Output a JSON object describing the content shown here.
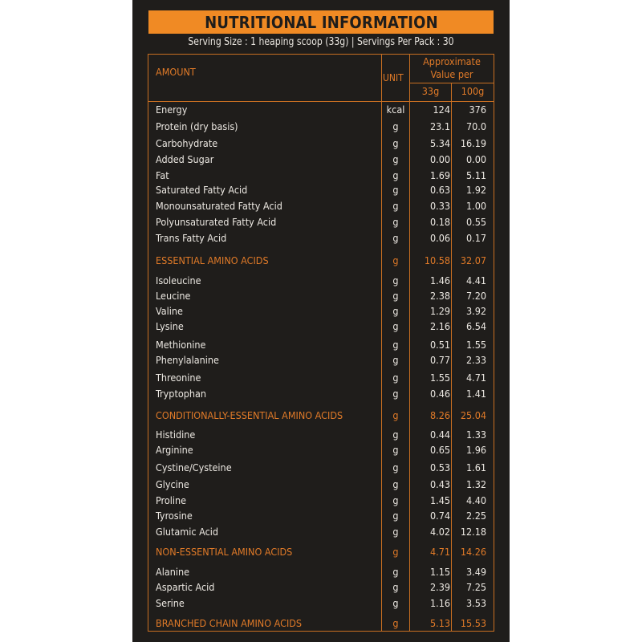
{
  "title": "NUTRITIONAL INFORMATION",
  "subtitle": "Serving Size : 1 heaping scoop (33g) | Servings Per Pack : 30",
  "colors": {
    "accent": "#f08a24",
    "background": "#1f1d1b",
    "text": "#ece8e2"
  },
  "header": {
    "amount": "AMOUNT",
    "unit": "UNIT",
    "approx_line1": "Approximate",
    "approx_line2": "Value per",
    "col_33g": "33g",
    "col_100g": "100g"
  },
  "rows": [
    {
      "name": "Energy",
      "unit": "kcal",
      "per_33g": "124",
      "per_100g": "376"
    },
    {
      "name": "Protein (dry basis)",
      "unit": "g",
      "per_33g": "23.1",
      "per_100g": "70.0"
    },
    {
      "name": "Carbohydrate",
      "unit": "g",
      "per_33g": "5.34",
      "per_100g": "16.19"
    },
    {
      "name": "Added Sugar",
      "unit": "g",
      "per_33g": "0.00",
      "per_100g": "0.00"
    },
    {
      "name": "Fat",
      "unit": "g",
      "per_33g": "1.69",
      "per_100g": "5.11"
    },
    {
      "name": "Saturated Fatty Acid",
      "unit": "g",
      "per_33g": "0.63",
      "per_100g": "1.92"
    },
    {
      "name": "Monounsaturated Fatty Acid",
      "unit": "g",
      "per_33g": "0.33",
      "per_100g": "1.00"
    },
    {
      "name": "Polyunsaturated Fatty Acid",
      "unit": "g",
      "per_33g": "0.18",
      "per_100g": "0.55"
    },
    {
      "name": "Trans Fatty Acid",
      "unit": "g",
      "per_33g": "0.06",
      "per_100g": "0.17"
    },
    {
      "name": "ESSENTIAL AMINO ACIDS",
      "unit": "g",
      "per_33g": "10.58",
      "per_100g": "32.07",
      "section": true
    },
    {
      "name": "Isoleucine",
      "unit": "g",
      "per_33g": "1.46",
      "per_100g": "4.41"
    },
    {
      "name": "Leucine",
      "unit": "g",
      "per_33g": "2.38",
      "per_100g": "7.20"
    },
    {
      "name": "Valine",
      "unit": "g",
      "per_33g": "1.29",
      "per_100g": "3.92"
    },
    {
      "name": "Lysine",
      "unit": "g",
      "per_33g": "2.16",
      "per_100g": "6.54"
    },
    {
      "name": "Methionine",
      "unit": "g",
      "per_33g": "0.51",
      "per_100g": "1.55"
    },
    {
      "name": "Phenylalanine",
      "unit": "g",
      "per_33g": "0.77",
      "per_100g": "2.33"
    },
    {
      "name": "Threonine",
      "unit": "g",
      "per_33g": "1.55",
      "per_100g": "4.71"
    },
    {
      "name": "Tryptophan",
      "unit": "g",
      "per_33g": "0.46",
      "per_100g": "1.41"
    },
    {
      "name": "CONDITIONALLY-ESSENTIAL AMINO ACIDS",
      "unit": "g",
      "per_33g": "8.26",
      "per_100g": "25.04",
      "section": true
    },
    {
      "name": "Histidine",
      "unit": "g",
      "per_33g": "0.44",
      "per_100g": "1.33"
    },
    {
      "name": "Arginine",
      "unit": "g",
      "per_33g": "0.65",
      "per_100g": "1.96"
    },
    {
      "name": "Cystine/Cysteine",
      "unit": "g",
      "per_33g": "0.53",
      "per_100g": "1.61"
    },
    {
      "name": "Glycine",
      "unit": "g",
      "per_33g": "0.43",
      "per_100g": "1.32"
    },
    {
      "name": "Proline",
      "unit": "g",
      "per_33g": "1.45",
      "per_100g": "4.40"
    },
    {
      "name": "Tyrosine",
      "unit": "g",
      "per_33g": "0.74",
      "per_100g": "2.25"
    },
    {
      "name": "Glutamic Acid",
      "unit": "g",
      "per_33g": "4.02",
      "per_100g": "12.18"
    },
    {
      "name": "NON-ESSENTIAL AMINO ACIDS",
      "unit": "g",
      "per_33g": "4.71",
      "per_100g": "14.26",
      "section": true
    },
    {
      "name": "Alanine",
      "unit": "g",
      "per_33g": "1.15",
      "per_100g": "3.49"
    },
    {
      "name": "Aspartic Acid",
      "unit": "g",
      "per_33g": "2.39",
      "per_100g": "7.25"
    },
    {
      "name": "Serine",
      "unit": "g",
      "per_33g": "1.16",
      "per_100g": "3.53"
    },
    {
      "name": "BRANCHED CHAIN AMINO ACIDS",
      "unit": "g",
      "per_33g": "5.13",
      "per_100g": "15.53",
      "section": true
    }
  ]
}
